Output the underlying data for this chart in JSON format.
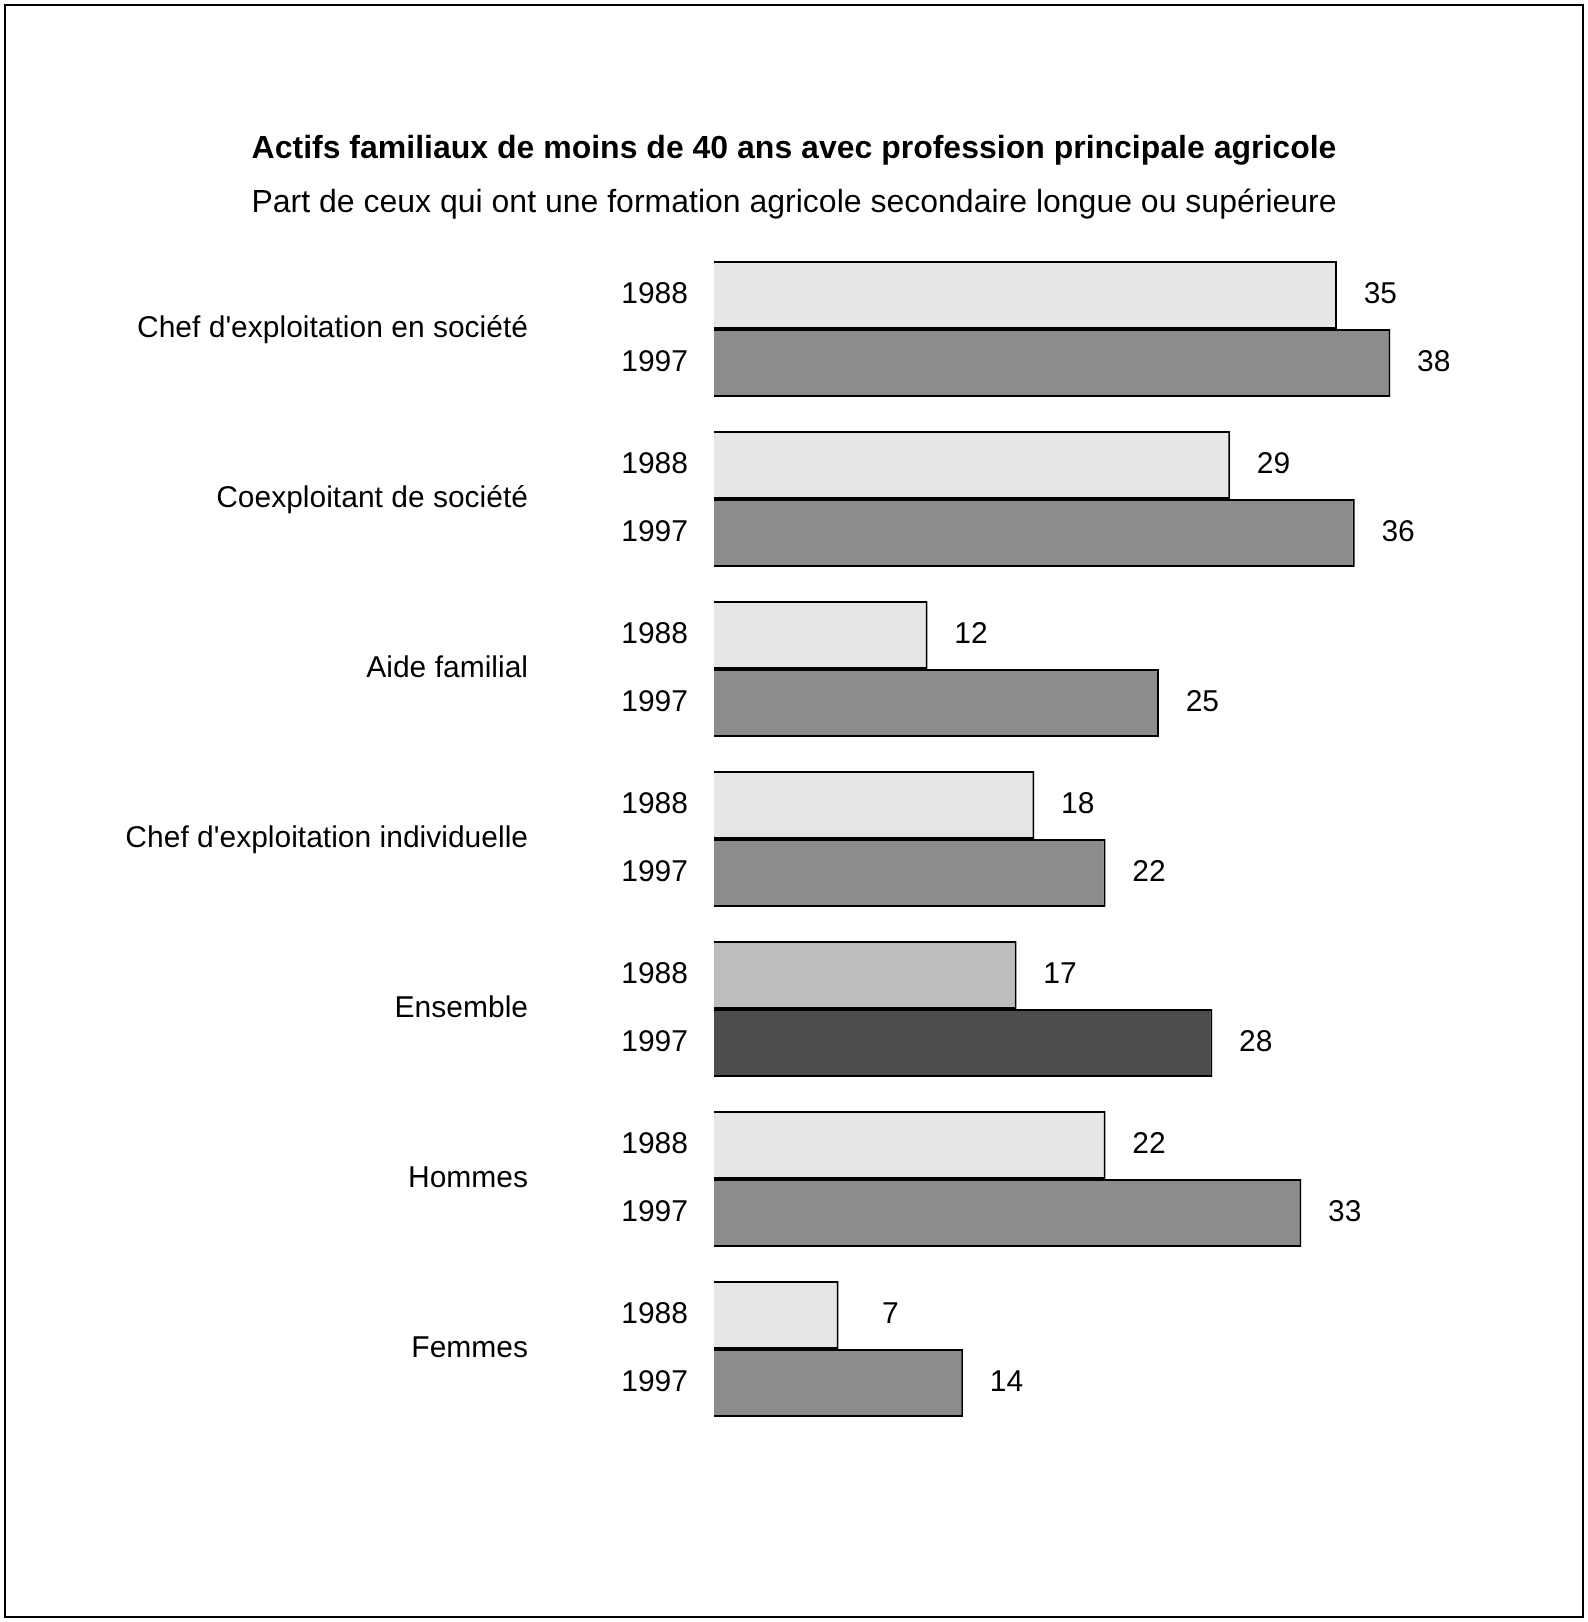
{
  "chart_data": {
    "type": "bar",
    "orientation": "horizontal",
    "title": "Actifs familiaux de moins de 40 ans avec profession principale agricole",
    "subtitle": "Part de ceux qui ont une formation agricole secondaire longue ou supérieure",
    "categories": [
      "Chef d'exploitation en société",
      "Coexploitant de société",
      "Aide familial",
      "Chef d'exploitation individuelle",
      "Ensemble",
      "Hommes",
      "Femmes"
    ],
    "series": [
      {
        "name": "1988",
        "colors": [
          "#e6e6e6",
          "#e6e6e6",
          "#e6e6e6",
          "#e6e6e6",
          "#bdbdbd",
          "#e6e6e6",
          "#e6e6e6"
        ],
        "values": [
          35,
          29,
          12,
          18,
          17,
          22,
          7
        ]
      },
      {
        "name": "1997",
        "colors": [
          "#8c8c8c",
          "#8c8c8c",
          "#8c8c8c",
          "#8c8c8c",
          "#4d4d4d",
          "#8c8c8c",
          "#8c8c8c"
        ],
        "values": [
          38,
          36,
          25,
          22,
          28,
          33,
          14
        ]
      }
    ],
    "data_labels": true,
    "legend": false
  }
}
